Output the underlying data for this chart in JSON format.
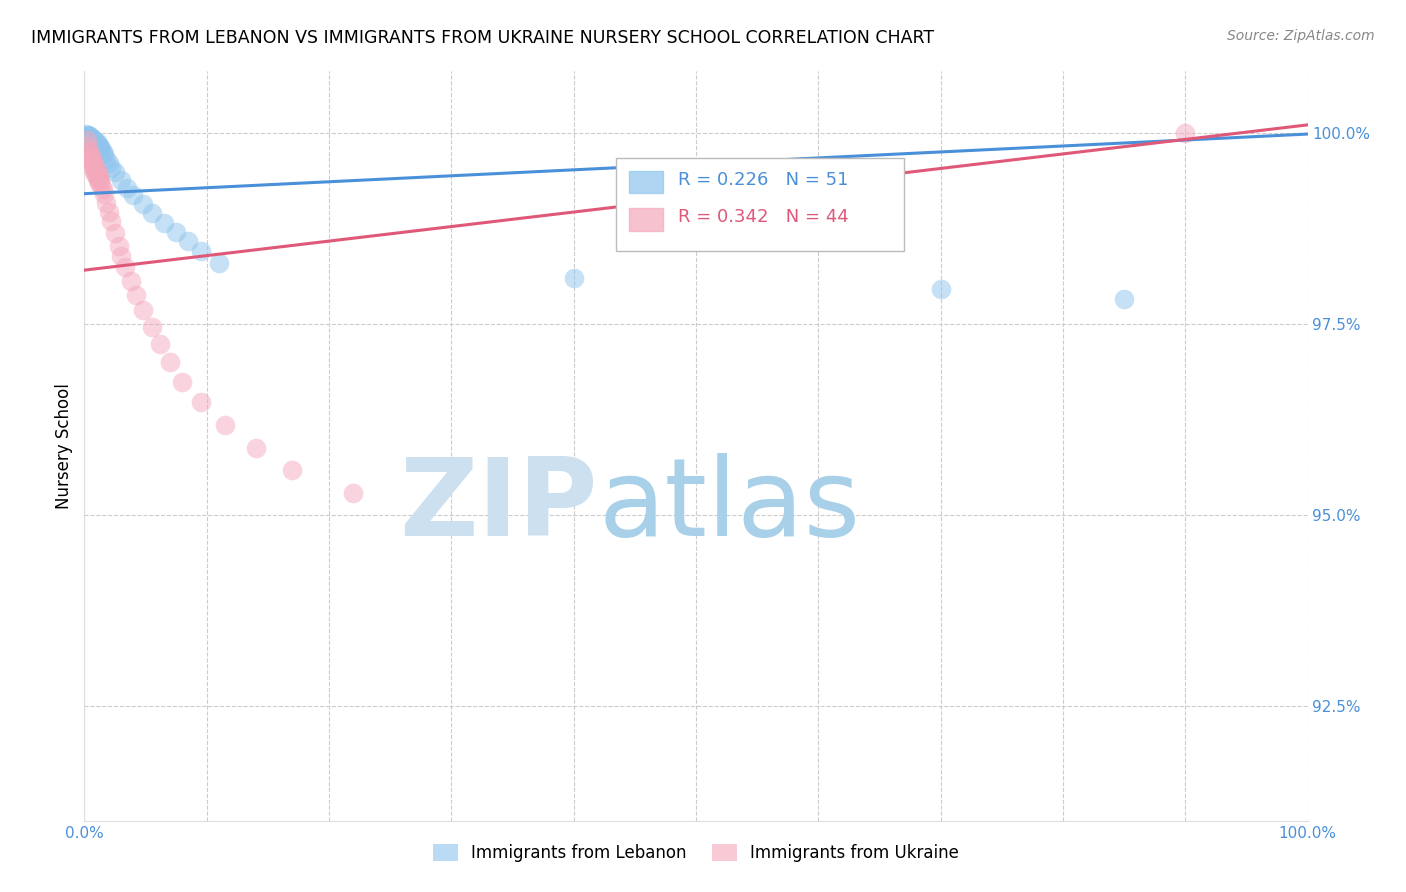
{
  "title": "IMMIGRANTS FROM LEBANON VS IMMIGRANTS FROM UKRAINE NURSERY SCHOOL CORRELATION CHART",
  "source": "Source: ZipAtlas.com",
  "ylabel": "Nursery School",
  "ytick_labels": [
    "100.0%",
    "97.5%",
    "95.0%",
    "92.5%"
  ],
  "ytick_values": [
    1.0,
    0.975,
    0.95,
    0.925
  ],
  "xlim": [
    0.0,
    1.0
  ],
  "ylim": [
    0.91,
    1.008
  ],
  "legend_blue_r": "0.226",
  "legend_blue_n": "51",
  "legend_pink_r": "0.342",
  "legend_pink_n": "44",
  "legend_label_blue": "Immigrants from Lebanon",
  "legend_label_pink": "Immigrants from Ukraine",
  "blue_color": "#8ec4ed",
  "pink_color": "#f4a8bc",
  "blue_line_color": "#4a90d9",
  "pink_line_color": "#e05878",
  "watermark_zip_color": "#cce0f0",
  "watermark_atlas_color": "#a8d0e8",
  "leb_x": [
    0.001,
    0.002,
    0.002,
    0.003,
    0.003,
    0.003,
    0.004,
    0.004,
    0.004,
    0.005,
    0.005,
    0.005,
    0.006,
    0.006,
    0.006,
    0.007,
    0.007,
    0.007,
    0.008,
    0.008,
    0.008,
    0.009,
    0.009,
    0.01,
    0.01,
    0.01,
    0.011,
    0.011,
    0.012,
    0.012,
    0.013,
    0.014,
    0.015,
    0.016,
    0.018,
    0.02,
    0.022,
    0.025,
    0.03,
    0.035,
    0.04,
    0.048,
    0.055,
    0.065,
    0.075,
    0.085,
    0.095,
    0.11,
    0.4,
    0.7,
    0.85
  ],
  "leb_y": [
    0.9998,
    0.9995,
    0.9993,
    0.9997,
    0.9994,
    0.999,
    0.9996,
    0.9992,
    0.9988,
    0.9995,
    0.9991,
    0.9986,
    0.9993,
    0.9989,
    0.9984,
    0.9992,
    0.9987,
    0.9982,
    0.999,
    0.9985,
    0.9979,
    0.9988,
    0.9983,
    0.9987,
    0.9982,
    0.9976,
    0.9985,
    0.9979,
    0.9983,
    0.9977,
    0.9981,
    0.9978,
    0.9975,
    0.9972,
    0.9966,
    0.996,
    0.9954,
    0.9948,
    0.9938,
    0.9928,
    0.9918,
    0.9906,
    0.9895,
    0.9882,
    0.987,
    0.9858,
    0.9845,
    0.983,
    0.981,
    0.9795,
    0.9782
  ],
  "ukr_x": [
    0.002,
    0.003,
    0.004,
    0.004,
    0.005,
    0.005,
    0.006,
    0.006,
    0.007,
    0.007,
    0.008,
    0.008,
    0.009,
    0.009,
    0.01,
    0.01,
    0.011,
    0.011,
    0.012,
    0.012,
    0.013,
    0.014,
    0.015,
    0.016,
    0.018,
    0.02,
    0.022,
    0.025,
    0.028,
    0.03,
    0.033,
    0.038,
    0.042,
    0.048,
    0.055,
    0.062,
    0.07,
    0.08,
    0.095,
    0.115,
    0.14,
    0.17,
    0.22,
    0.9
  ],
  "ukr_y": [
    0.999,
    0.9982,
    0.9976,
    0.9968,
    0.9972,
    0.9964,
    0.9968,
    0.996,
    0.9962,
    0.9954,
    0.9958,
    0.995,
    0.9954,
    0.9946,
    0.995,
    0.9942,
    0.9946,
    0.9938,
    0.9942,
    0.9934,
    0.9938,
    0.9932,
    0.9926,
    0.992,
    0.9908,
    0.9896,
    0.9884,
    0.9868,
    0.9852,
    0.9838,
    0.9824,
    0.9806,
    0.9788,
    0.9768,
    0.9746,
    0.9724,
    0.97,
    0.9674,
    0.9648,
    0.9618,
    0.9588,
    0.9558,
    0.9528,
    1.0
  ],
  "blue_trendline": [
    0.0,
    1.0,
    0.992,
    0.9998
  ],
  "pink_trendline": [
    0.0,
    1.0,
    0.982,
    1.001
  ]
}
